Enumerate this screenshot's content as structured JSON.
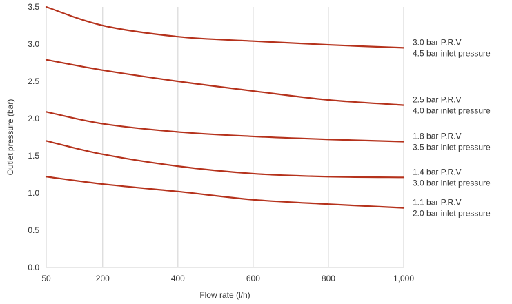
{
  "chart_data": {
    "type": "line",
    "title": "",
    "xlabel": "Flow rate (l/h)",
    "ylabel": "Outlet pressure (bar)",
    "xlim": [
      50,
      1000
    ],
    "ylim": [
      0,
      3.5
    ],
    "grid": true,
    "legend": "right-end labels",
    "x_ticks": [
      {
        "value": 50,
        "label": "50"
      },
      {
        "value": 200,
        "label": "200"
      },
      {
        "value": 400,
        "label": "400"
      },
      {
        "value": 600,
        "label": "600"
      },
      {
        "value": 800,
        "label": "800"
      },
      {
        "value": 1000,
        "label": "1,000"
      }
    ],
    "y_ticks": [
      {
        "value": 0,
        "label": "0.0"
      },
      {
        "value": 0.5,
        "label": "0.5"
      },
      {
        "value": 1,
        "label": "1.0"
      },
      {
        "value": 1.5,
        "label": "1.5"
      },
      {
        "value": 2,
        "label": "2.0"
      },
      {
        "value": 2.5,
        "label": "2.5"
      },
      {
        "value": 3,
        "label": "3.0"
      },
      {
        "value": 3.5,
        "label": "3.5"
      }
    ],
    "line_color": "#b5321c",
    "grid_color": "#d0d0d0",
    "series": [
      {
        "label_line1": "3.0 bar P.R.V",
        "label_line2": "4.5 bar inlet pressure",
        "x": [
          50,
          200,
          400,
          600,
          800,
          1000
        ],
        "y": [
          3.5,
          3.25,
          3.1,
          3.04,
          2.99,
          2.95
        ]
      },
      {
        "label_line1": "2.5 bar P.R.V",
        "label_line2": "4.0 bar inlet pressure",
        "x": [
          50,
          200,
          400,
          600,
          800,
          1000
        ],
        "y": [
          2.79,
          2.65,
          2.5,
          2.37,
          2.25,
          2.18
        ]
      },
      {
        "label_line1": "1.8 bar P.R.V",
        "label_line2": "3.5 bar inlet pressure",
        "x": [
          50,
          200,
          400,
          600,
          800,
          1000
        ],
        "y": [
          2.09,
          1.93,
          1.82,
          1.76,
          1.72,
          1.69
        ]
      },
      {
        "label_line1": "1.4 bar P.R.V",
        "label_line2": "3.0 bar inlet pressure",
        "x": [
          50,
          200,
          400,
          600,
          800,
          1000
        ],
        "y": [
          1.7,
          1.52,
          1.36,
          1.26,
          1.22,
          1.21
        ]
      },
      {
        "label_line1": "1.1 bar P.R.V",
        "label_line2": "2.0 bar inlet pressure",
        "x": [
          50,
          200,
          400,
          600,
          800,
          1000
        ],
        "y": [
          1.22,
          1.12,
          1.02,
          0.91,
          0.85,
          0.8
        ]
      }
    ]
  }
}
